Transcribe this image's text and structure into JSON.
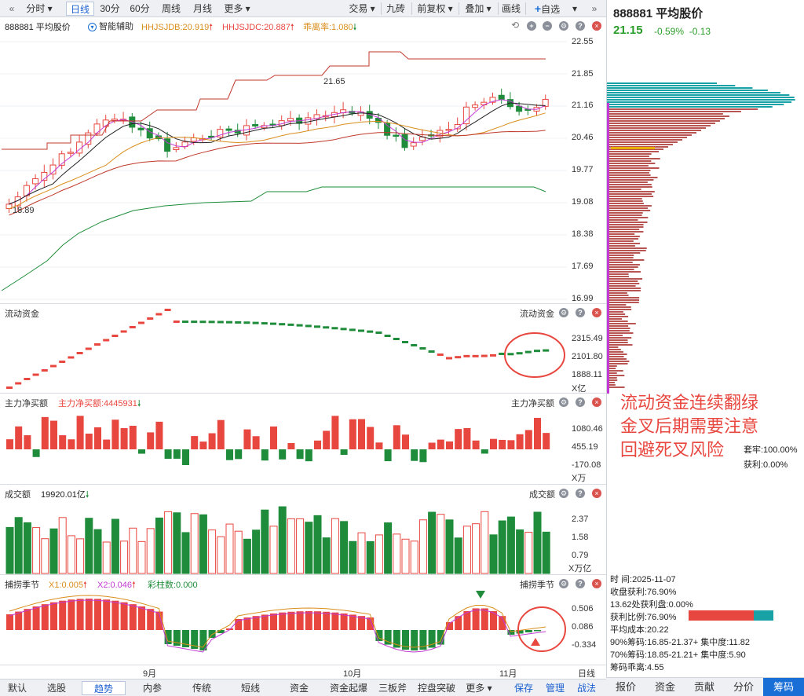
{
  "toolbar": {
    "left_tabs": [
      "分时",
      "日线",
      "30分",
      "60分",
      "周线",
      "月线",
      "更多"
    ],
    "selected": "日线",
    "right_items": [
      "交易",
      "九砖",
      "前复权",
      "叠加",
      "画线",
      "自选"
    ],
    "more_icon": "chevron-double-right-icon"
  },
  "main": {
    "stock": "888881 平均股价",
    "assist": "智能辅助",
    "ind1": "HHJSJDB:20.919",
    "ind2": "HHJSJDC:20.887",
    "ind3": "乖离率:1.080",
    "price_ticks": [
      "22.55",
      "21.85",
      "21.16",
      "20.46",
      "19.77",
      "19.08",
      "18.38",
      "17.69",
      "16.99"
    ],
    "high_label": "21.65",
    "low_label": "18.89"
  },
  "flow": {
    "title": "流动资金",
    "title_right": "流动资金",
    "ticks": [
      "2315.49",
      "2101.80",
      "1888.11"
    ],
    "unit": "X亿"
  },
  "netbuy": {
    "title": "主力净买额",
    "value": "主力净买额:4445931",
    "title_right": "主力净买额",
    "ticks": [
      "1080.46",
      "455.19",
      "-170.08"
    ],
    "unit": "X万"
  },
  "volume": {
    "title": "成交额",
    "value": "19920.01亿",
    "title_right": "成交额",
    "ticks": [
      "2.37",
      "1.58",
      "0.79"
    ],
    "unit": "X万亿"
  },
  "season": {
    "title": "捕捞季节",
    "x1": "X1:0.005",
    "x2": "X2:0.046",
    "bars": "彩柱数:0.000",
    "title_right": "捕捞季节",
    "ticks": [
      "0.506",
      "0.086",
      "-0.334"
    ]
  },
  "xaxis": {
    "months": [
      "9月",
      "10月",
      "11月"
    ],
    "period": "日线"
  },
  "annotation": {
    "lines": [
      "流动资金连续翻绿",
      "金叉后期需要注意",
      "回避死叉风险"
    ]
  },
  "right": {
    "title": "888881 平均股价",
    "price": "21.15",
    "pct": "-0.59%",
    "chg": "-0.13",
    "lock": "套牢:100.00%",
    "profit": "获利:0.00%",
    "info": [
      "时 间:2025-11-07",
      "收盘获利:76.90%",
      "13.62处获利盘:0.00%",
      "获利比例:76.90%",
      "平均成本:20.22",
      "90%筹码:16.85-21.37+ 集中度:11.82",
      "70%筹码:18.85-21.21+ 集中度:5.90",
      "筹码乖离:4.55"
    ],
    "tabs": [
      "报价",
      "资金",
      "贡献",
      "分价",
      "筹码"
    ],
    "selected_tab": "筹码"
  },
  "bottom": {
    "tabs": [
      "默认",
      "选股",
      "趋势",
      "内参",
      "传统",
      "短线",
      "资金",
      "资金起爆",
      "三板斧",
      "控盘突破",
      "更多"
    ],
    "selected": "趋势",
    "right": [
      "保存",
      "管理",
      "战法"
    ]
  },
  "colors": {
    "up": "#e8473f",
    "down": "#1e8c3a",
    "accent": "#1a6fd6"
  }
}
